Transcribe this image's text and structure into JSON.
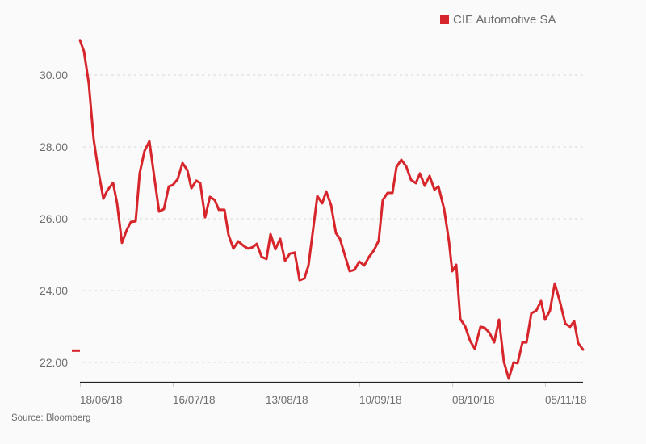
{
  "legend": {
    "label": "CIE Automotive SA",
    "color": "#d7262b"
  },
  "source": "Source: Bloomberg",
  "colors": {
    "line": "#d7262b",
    "grid": "#d8d8d8",
    "axis": "#222222",
    "text": "#6e6e6e",
    "background": "#fafafa"
  },
  "yticks": [
    "30.00",
    "28.00",
    "26.00",
    "24.00",
    "22.00"
  ],
  "xticks": [
    "18/06/18",
    "16/07/18",
    "13/08/18",
    "10/09/18",
    "08/10/18",
    "05/11/18"
  ],
  "chart_data": {
    "type": "line",
    "title": "",
    "xlabel": "",
    "ylabel": "",
    "legend": [
      "CIE Automotive SA"
    ],
    "legend_position": "top-right",
    "grid": "horizontal dashed",
    "ylim": [
      21.45,
      31.0
    ],
    "x_tick_labels": [
      "18/06/18",
      "16/07/18",
      "13/08/18",
      "10/09/18",
      "08/10/18",
      "05/11/18"
    ],
    "y_tick_labels": [
      "22.00",
      "24.00",
      "26.00",
      "28.00",
      "30.00"
    ],
    "first_value_marker": 22.33,
    "series": [
      {
        "name": "CIE Automotive SA",
        "px": [
          99,
          104,
          110,
          116,
          122,
          128,
          133,
          140,
          145,
          151,
          157,
          162,
          168,
          173,
          179,
          185,
          191,
          197,
          203,
          209,
          214,
          220,
          226,
          232,
          237,
          243,
          248,
          254,
          260,
          266,
          271,
          278,
          283,
          289,
          295,
          302,
          307,
          313,
          318,
          324,
          330,
          335,
          341,
          347,
          353,
          359,
          365,
          371,
          377,
          382,
          387,
          393,
          399,
          404,
          410,
          416,
          421,
          427,
          433,
          439,
          445,
          451,
          457,
          463,
          469,
          474,
          480,
          486,
          491,
          497,
          503,
          509,
          515,
          520,
          526,
          532,
          538,
          543,
          550,
          556,
          560,
          565,
          570,
          576,
          582,
          588,
          595,
          600,
          606,
          612,
          618,
          624,
          630,
          636,
          641,
          647,
          652,
          658,
          664,
          670,
          675,
          681,
          687,
          694,
          700,
          706,
          711,
          716,
          722
        ],
        "values": [
          30.97,
          30.66,
          29.76,
          28.21,
          27.31,
          26.56,
          26.79,
          27.0,
          26.43,
          25.33,
          25.69,
          25.91,
          25.93,
          27.27,
          27.89,
          28.16,
          27.17,
          26.2,
          26.27,
          26.9,
          26.94,
          27.1,
          27.55,
          27.35,
          26.85,
          27.06,
          26.99,
          26.04,
          26.61,
          26.52,
          26.25,
          26.25,
          25.55,
          25.17,
          25.37,
          25.24,
          25.17,
          25.21,
          25.3,
          24.94,
          24.88,
          25.57,
          25.15,
          25.44,
          24.83,
          25.03,
          25.06,
          24.29,
          24.34,
          24.7,
          25.57,
          26.63,
          26.43,
          26.76,
          26.38,
          25.6,
          25.44,
          24.99,
          24.54,
          24.58,
          24.81,
          24.7,
          24.94,
          25.12,
          25.39,
          26.52,
          26.72,
          26.72,
          27.44,
          27.64,
          27.46,
          27.08,
          26.99,
          27.26,
          26.92,
          27.19,
          26.81,
          26.9,
          26.27,
          25.37,
          24.54,
          24.72,
          23.21,
          23.01,
          22.61,
          22.38,
          22.99,
          22.97,
          22.83,
          22.56,
          23.19,
          22.02,
          21.55,
          22.0,
          21.98,
          22.56,
          22.56,
          23.37,
          23.44,
          23.71,
          23.19,
          23.44,
          24.2,
          23.64,
          23.08,
          22.99,
          23.15,
          22.54,
          22.36
        ]
      }
    ]
  }
}
